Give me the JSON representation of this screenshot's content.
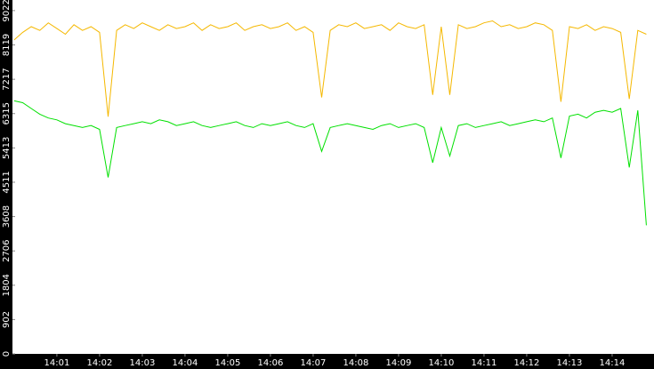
{
  "chart_data": {
    "type": "line",
    "x": [
      0,
      0.2,
      0.4,
      0.6,
      0.8,
      1,
      1.2,
      1.4,
      1.6,
      1.8,
      2,
      2.2,
      2.4,
      2.6,
      2.8,
      3,
      3.2,
      3.4,
      3.6,
      3.8,
      4,
      4.2,
      4.4,
      4.6,
      4.8,
      5,
      5.2,
      5.4,
      5.6,
      5.8,
      6,
      6.2,
      6.4,
      6.6,
      6.8,
      7,
      7.2,
      7.4,
      7.6,
      7.8,
      8,
      8.2,
      8.4,
      8.6,
      8.8,
      9,
      9.2,
      9.4,
      9.6,
      9.8,
      10,
      10.2,
      10.4,
      10.6,
      10.8,
      11,
      11.2,
      11.4,
      11.6,
      11.8,
      12,
      12.2,
      12.4,
      12.6,
      12.8,
      13,
      13.2,
      13.4,
      13.6,
      13.8,
      14,
      14.2,
      14.4,
      14.6,
      14.8
    ],
    "series": [
      {
        "color": "#f5b800",
        "values": [
          8250,
          8450,
          8600,
          8500,
          8700,
          8550,
          8400,
          8650,
          8500,
          8600,
          8450,
          6235,
          8500,
          8650,
          8550,
          8700,
          8600,
          8500,
          8650,
          8550,
          8600,
          8700,
          8500,
          8650,
          8550,
          8600,
          8700,
          8500,
          8600,
          8650,
          8550,
          8600,
          8700,
          8500,
          8600,
          8450,
          6738,
          8500,
          8650,
          8600,
          8700,
          8550,
          8600,
          8650,
          8500,
          8700,
          8600,
          8550,
          8650,
          6806,
          8600,
          6806,
          8650,
          8550,
          8600,
          8700,
          8750,
          8600,
          8650,
          8550,
          8600,
          8700,
          8650,
          8500,
          6624,
          8600,
          8550,
          8650,
          8500,
          8600,
          8550,
          8450,
          6700,
          8500,
          8400
        ]
      },
      {
        "color": "#00e000",
        "values": [
          6650,
          6600,
          6450,
          6300,
          6200,
          6150,
          6050,
          6000,
          5950,
          6000,
          5900,
          4636,
          5950,
          6000,
          6050,
          6100,
          6050,
          6150,
          6100,
          6000,
          6050,
          6100,
          6000,
          5950,
          6000,
          6050,
          6100,
          6000,
          5950,
          6050,
          6000,
          6050,
          6100,
          6000,
          5950,
          6050,
          5320,
          5950,
          6000,
          6050,
          6000,
          5950,
          5900,
          6000,
          6050,
          5950,
          6000,
          6050,
          5950,
          5025,
          5950,
          5200,
          6000,
          6050,
          5950,
          6000,
          6050,
          6100,
          6000,
          6050,
          6100,
          6150,
          6100,
          6200,
          5150,
          6250,
          6300,
          6200,
          6350,
          6400,
          6350,
          6450,
          4900,
          6400,
          3380
        ]
      }
    ],
    "xlim": [
      -0.04,
      14.98
    ],
    "xticks": [
      {
        "value": 1,
        "label": "14:01"
      },
      {
        "value": 2,
        "label": "14:02"
      },
      {
        "value": 3,
        "label": "14:03"
      },
      {
        "value": 4,
        "label": "14:04"
      },
      {
        "value": 5,
        "label": "14:05"
      },
      {
        "value": 6,
        "label": "14:06"
      },
      {
        "value": 7,
        "label": "14:07"
      },
      {
        "value": 8,
        "label": "14:08"
      },
      {
        "value": 9,
        "label": "14:09"
      },
      {
        "value": 10,
        "label": "14:10"
      },
      {
        "value": 11,
        "label": "14:11"
      },
      {
        "value": 12,
        "label": "14:12"
      },
      {
        "value": 13,
        "label": "14:13"
      },
      {
        "value": 14,
        "label": "14:14"
      }
    ],
    "ylim": [
      0,
      9300
    ],
    "yticks": [
      0,
      902,
      1804,
      2706,
      3608,
      4511,
      5413,
      6315,
      7217,
      8119,
      9022
    ]
  }
}
